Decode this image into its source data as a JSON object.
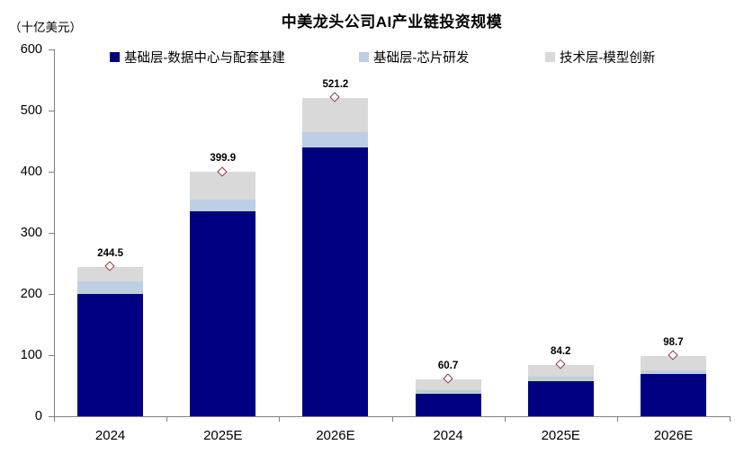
{
  "chart_data": {
    "type": "bar",
    "stacked": true,
    "title": "中美龙头公司AI产业链投资规模",
    "unit_label": "（十亿美元）",
    "categories": [
      "2024",
      "2025E",
      "2026E",
      "2024",
      "2025E",
      "2026E"
    ],
    "series": [
      {
        "name": "基础层-数据中心与配套基建",
        "color": "#000080",
        "values": [
          200,
          335,
          440,
          37,
          58,
          69
        ]
      },
      {
        "name": "基础层-芯片研发",
        "color": "#BCCFE4",
        "values": [
          20,
          20,
          25,
          6,
          6,
          6
        ]
      },
      {
        "name": "技术层-模型创新",
        "color": "#D9D9D9",
        "values": [
          24.5,
          44.9,
          56.2,
          17.7,
          20.2,
          23.7
        ]
      }
    ],
    "totals": [
      244.5,
      399.9,
      521.2,
      60.7,
      84.2,
      98.7
    ],
    "total_labels": [
      "244.5",
      "399.9",
      "521.2",
      "60.7",
      "84.2",
      "98.7"
    ],
    "y_ticks": [
      0,
      100,
      200,
      300,
      400,
      500,
      600
    ],
    "ylim": [
      0,
      600
    ],
    "grid": false,
    "legend_position": "top",
    "marker": {
      "shape": "diamond",
      "outline_color": "#963634",
      "fill": "#FFFFFF"
    },
    "axis_color": "#808080",
    "text_color": "#000000"
  }
}
